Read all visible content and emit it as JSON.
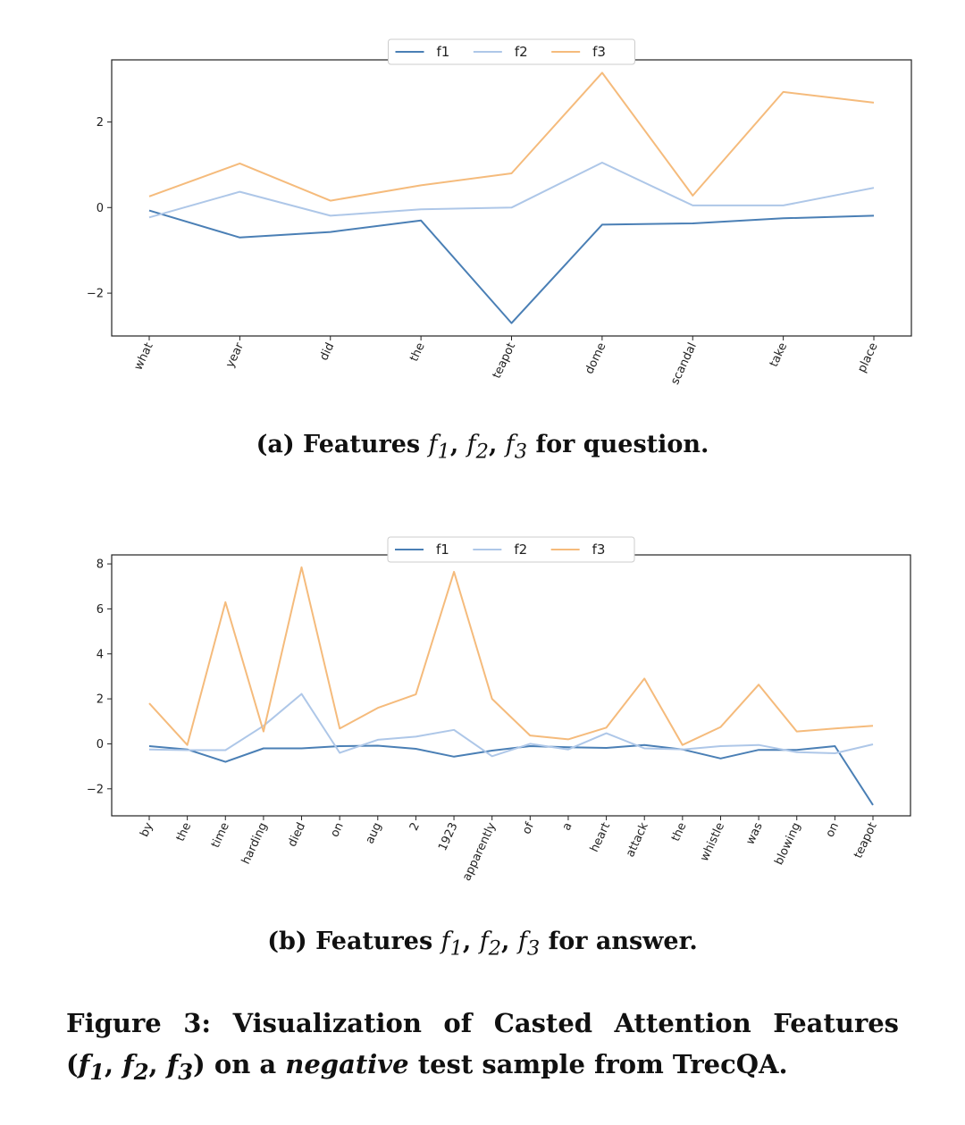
{
  "chart_data": [
    {
      "type": "line",
      "categories": [
        "what",
        "year",
        "did",
        "the",
        "teapot",
        "dome",
        "scandal",
        "take",
        "place"
      ],
      "series": [
        {
          "name": "f1",
          "color": "#4a7fb5",
          "values": [
            -0.07,
            -0.7,
            -0.57,
            -0.3,
            -2.7,
            -0.4,
            -0.37,
            -0.25,
            -0.19
          ]
        },
        {
          "name": "f2",
          "color": "#aec7e8",
          "values": [
            -0.23,
            0.37,
            -0.19,
            -0.04,
            0.0,
            1.05,
            0.05,
            0.05,
            0.46
          ]
        },
        {
          "name": "f3",
          "color": "#f5bb7c",
          "values": [
            0.26,
            1.03,
            0.16,
            0.52,
            0.8,
            3.15,
            0.28,
            2.7,
            2.45
          ]
        }
      ],
      "yticks": [
        -2,
        0,
        2
      ],
      "ytick_labels": [
        "−2",
        "0",
        "2"
      ],
      "ylim": [
        -3.0,
        3.45
      ],
      "legend": "top-center",
      "grid": false
    },
    {
      "type": "line",
      "categories": [
        "by",
        "the",
        "time",
        "harding",
        "died",
        "on",
        "aug",
        "2",
        "1923",
        "apparently",
        "of",
        "a",
        "heart",
        "attack",
        "the",
        "whistle",
        "was",
        "blowing",
        "on",
        "teapot"
      ],
      "series": [
        {
          "name": "f1",
          "color": "#4a7fb5",
          "values": [
            -0.1,
            -0.25,
            -0.8,
            -0.2,
            -0.2,
            -0.1,
            -0.08,
            -0.22,
            -0.57,
            -0.3,
            -0.1,
            -0.15,
            -0.18,
            -0.05,
            -0.25,
            -0.65,
            -0.27,
            -0.27,
            -0.1,
            -2.72
          ]
        },
        {
          "name": "f2",
          "color": "#aec7e8",
          "values": [
            -0.25,
            -0.28,
            -0.28,
            0.8,
            2.22,
            -0.4,
            0.18,
            0.32,
            0.62,
            -0.55,
            0.0,
            -0.25,
            0.47,
            -0.2,
            -0.25,
            -0.1,
            -0.05,
            -0.37,
            -0.42,
            -0.02
          ]
        },
        {
          "name": "f3",
          "color": "#f5bb7c",
          "values": [
            1.8,
            -0.05,
            6.3,
            0.55,
            7.85,
            0.68,
            1.6,
            2.2,
            7.65,
            2.0,
            0.37,
            0.2,
            0.72,
            2.9,
            -0.05,
            0.75,
            2.63,
            0.55,
            0.68,
            0.8
          ]
        }
      ],
      "yticks": [
        -2,
        0,
        2,
        4,
        6,
        8
      ],
      "ytick_labels": [
        "−2",
        "0",
        "2",
        "4",
        "6",
        "8"
      ],
      "ylim": [
        -3.2,
        8.4
      ],
      "legend": "top-center",
      "grid": false
    }
  ],
  "captions": {
    "a_prefix": "(a) Features ",
    "a_suffix": " for question.",
    "b_prefix": "(b) Features ",
    "b_suffix": " for answer.",
    "sub_f1": "f",
    "sub_idx1": "1",
    "sub_f2": "f",
    "sub_idx2": "2",
    "sub_f3": "f",
    "sub_idx3": "3",
    "figure_line1": "Figure 3: Visualization of Casted Attention Features",
    "figure_line2_open": "(",
    "figure_line2_mid": ") on a ",
    "figure_line2_italic": "negative",
    "figure_line2_end": " test sample from TrecQA."
  }
}
